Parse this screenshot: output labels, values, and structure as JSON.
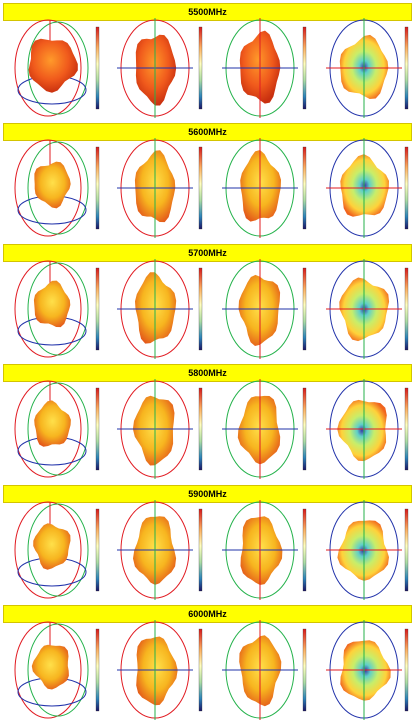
{
  "sections": [
    {
      "label": "5500MHz"
    },
    {
      "label": "5600MHz"
    },
    {
      "label": "5700MHz"
    },
    {
      "label": "5800MHz"
    },
    {
      "label": "5900MHz"
    },
    {
      "label": "6000MHz"
    }
  ],
  "colors": {
    "band_fill": "#ffff00",
    "axis_x": "#e11b22",
    "axis_y": "#24b24b",
    "axis_z": "#2233aa",
    "pattern_hot": "#e53b14",
    "pattern_warm": "#f7c51f",
    "pattern_cool": "#7fd5a8"
  },
  "plot_views": [
    "3d-view",
    "front-view",
    "side-view",
    "top-view"
  ],
  "colorbar": {
    "gradient": [
      "#d7191c",
      "#fdae61",
      "#ffffbf",
      "#abdda4",
      "#2b83ba",
      "#1b1464"
    ]
  }
}
